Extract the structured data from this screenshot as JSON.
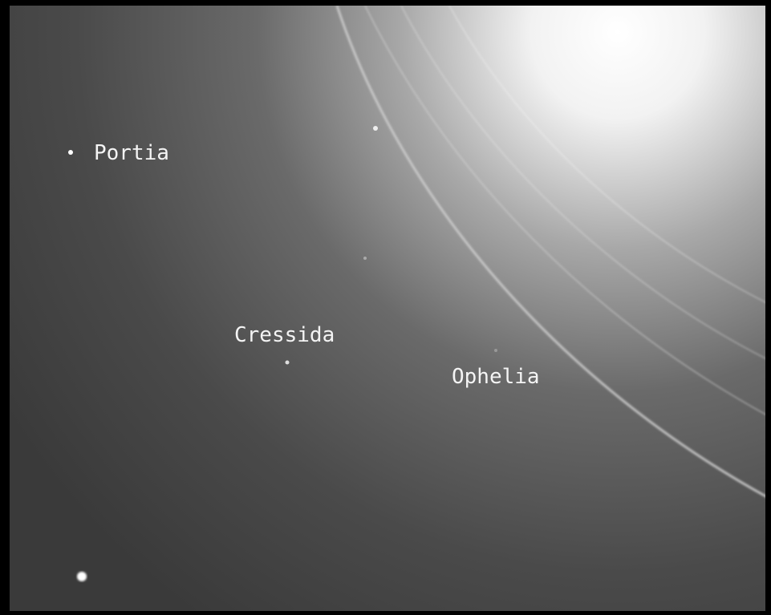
{
  "labels": [
    "Portia",
    "Cressida",
    "Ophelia"
  ]
}
